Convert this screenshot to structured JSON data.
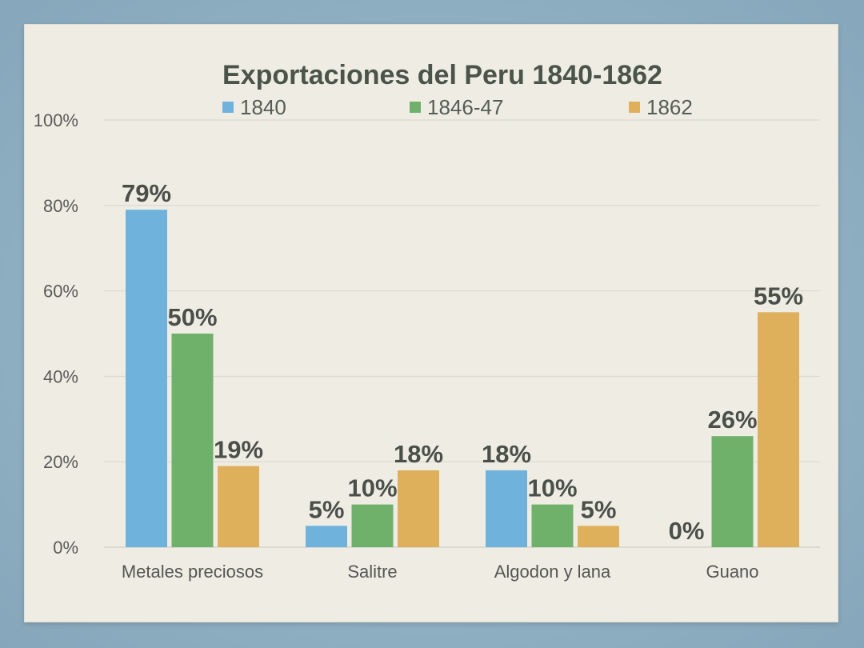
{
  "chart_data": {
    "type": "bar",
    "title": "Exportaciones del Peru 1840-1862",
    "categories": [
      "Metales preciosos",
      "Salitre",
      "Algodon y lana",
      "Guano"
    ],
    "series": [
      {
        "name": "1840",
        "color": "#6fb3dc",
        "values": [
          79,
          5,
          18,
          0
        ]
      },
      {
        "name": "1846-47",
        "color": "#6fb06a",
        "values": [
          50,
          10,
          10,
          26
        ]
      },
      {
        "name": "1862",
        "color": "#deb05c",
        "values": [
          19,
          18,
          5,
          55
        ]
      }
    ],
    "value_labels": [
      [
        "79%",
        "5%",
        "18%",
        "0%"
      ],
      [
        "50%",
        "10%",
        "10%",
        "26%"
      ],
      [
        "19%",
        "18%",
        "5%",
        "55%"
      ]
    ],
    "ylim": [
      0,
      100
    ],
    "yticks": [
      0,
      20,
      40,
      60,
      80,
      100
    ],
    "ytick_labels": [
      "0%",
      "20%",
      "40%",
      "60%",
      "80%",
      "100%"
    ],
    "grid": true,
    "legend_position": "top"
  }
}
